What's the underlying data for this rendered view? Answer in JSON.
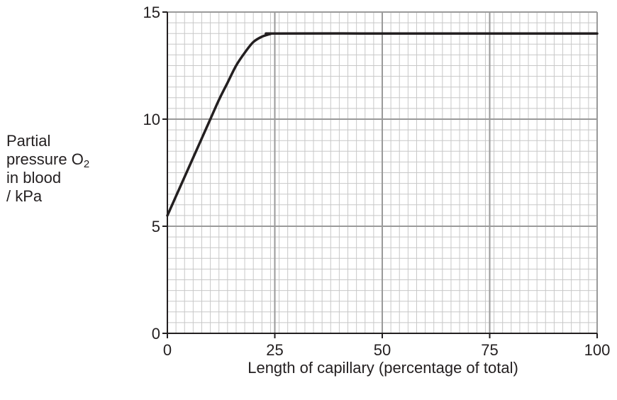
{
  "chart_data": {
    "type": "line",
    "title": "",
    "xlabel": "Length of capillary (percentage of total)",
    "ylabel": {
      "line1": "Partial",
      "line2_main": "pressure O",
      "line2_sub": "2",
      "line3": "in blood",
      "line4": "/ kPa"
    },
    "xlim": [
      0,
      100
    ],
    "ylim": [
      0,
      15
    ],
    "x_ticks": [
      0,
      25,
      50,
      75,
      100
    ],
    "y_ticks": [
      0,
      5,
      10,
      15
    ],
    "x_tick_labels": [
      "0",
      "25",
      "50",
      "75",
      "100"
    ],
    "y_tick_labels": [
      "0",
      "5",
      "10",
      "15"
    ],
    "grid": true,
    "x_minor_step": 2,
    "y_minor_step": 0.5,
    "series": [
      {
        "color": "#231f20",
        "points": [
          [
            0,
            5.5
          ],
          [
            2,
            6.4
          ],
          [
            4,
            7.3
          ],
          [
            6,
            8.2
          ],
          [
            8,
            9.1
          ],
          [
            10,
            10.0
          ],
          [
            12,
            10.9
          ],
          [
            14,
            11.7
          ],
          [
            16,
            12.5
          ],
          [
            18,
            13.1
          ],
          [
            20,
            13.6
          ],
          [
            22,
            13.85
          ],
          [
            24,
            13.98
          ],
          [
            25,
            14.0
          ],
          [
            50,
            14.0
          ],
          [
            75,
            14.0
          ],
          [
            100,
            14.0
          ]
        ]
      }
    ],
    "colors": {
      "major_grid": "#9a9a9a",
      "minor_grid": "#c8c8c8",
      "axis": "#231f20",
      "line": "#231f20"
    }
  }
}
